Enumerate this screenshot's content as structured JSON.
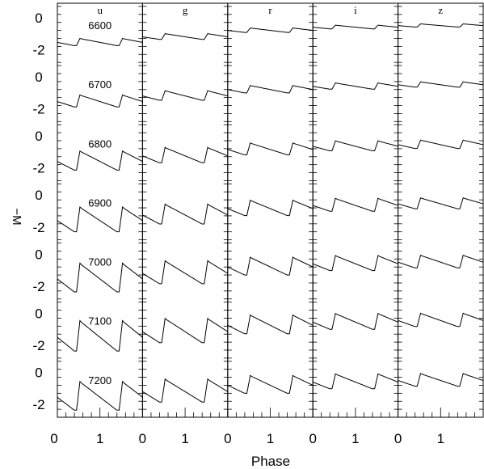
{
  "chart_data": {
    "type": "line",
    "title": "",
    "xlabel": "Phase",
    "ylabel": "−M",
    "bands": [
      "u",
      "g",
      "r",
      "i",
      "z"
    ],
    "temperatures": [
      "6600",
      "6700",
      "6800",
      "6900",
      "7000",
      "7100",
      "7200"
    ],
    "x_ticks": [
      "0",
      "1"
    ],
    "y_ticks": [
      "0",
      "-2"
    ],
    "xlim": [
      0,
      2
    ],
    "ylim_per_row": [
      -2.8,
      0.9
    ],
    "grid": false,
    "amplitude_by_temperature": [
      0.45,
      0.75,
      1.2,
      1.55,
      1.8,
      1.9,
      1.8
    ],
    "mean_minus_M_by_temperature": [
      -1.55,
      -1.55,
      -1.6,
      -1.6,
      -1.55,
      -1.5,
      -1.55
    ],
    "band_amplitude_scale": [
      1.0,
      0.8,
      0.62,
      0.52,
      0.44
    ],
    "band_mean_offset": [
      0.0,
      0.35,
      0.75,
      0.95,
      1.05
    ]
  }
}
